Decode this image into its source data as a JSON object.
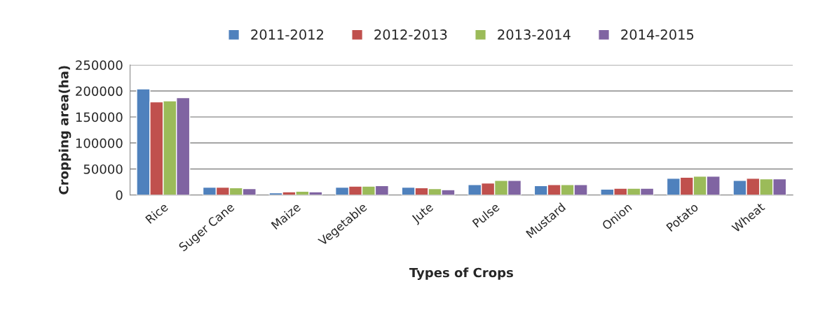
{
  "chart_data": {
    "type": "bar",
    "xlabel": "Types of Crops",
    "ylabel": "Cropping area(ha)",
    "categories": [
      "Rice",
      "Suger Cane",
      "Maize",
      "Vegetable",
      "Jute",
      "Pulse",
      "Mustard",
      "Onion",
      "Potato",
      "Wheat"
    ],
    "series": [
      {
        "name": "2011-2012",
        "color": "#4f81bd",
        "values": [
          204000,
          15000,
          4000,
          15000,
          15000,
          20000,
          18000,
          11000,
          32000,
          28000
        ]
      },
      {
        "name": "2012-2013",
        "color": "#c0504d",
        "values": [
          179000,
          15000,
          6000,
          17000,
          14000,
          23000,
          20000,
          13000,
          34000,
          32000
        ]
      },
      {
        "name": "2013-2014",
        "color": "#9bbb59",
        "values": [
          181000,
          14000,
          7000,
          17000,
          12000,
          28000,
          20000,
          13000,
          36000,
          31000
        ]
      },
      {
        "name": "2014-2015",
        "color": "#8064a2",
        "values": [
          187000,
          12000,
          6000,
          18000,
          10000,
          28000,
          20000,
          13000,
          36000,
          31000
        ]
      }
    ],
    "ylim": [
      0,
      250000
    ],
    "yticks": [
      0,
      50000,
      100000,
      150000,
      200000,
      250000
    ],
    "grid": "y",
    "legend": "top"
  }
}
